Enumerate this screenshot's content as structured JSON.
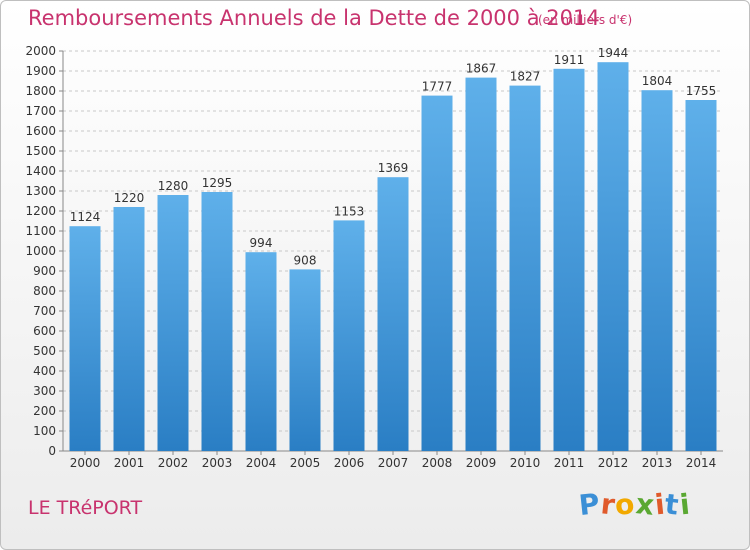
{
  "title": "Remboursements Annuels de la Dette de 2000 à 2014",
  "subtitle": "(en milliers d'€)",
  "location": "LE TRéPORT",
  "logo": {
    "letters": [
      "P",
      "r",
      "o",
      "x",
      "i",
      "t",
      "i"
    ],
    "colors": [
      "#3b8fd6",
      "#e05a2b",
      "#f2a900",
      "#5aa832",
      "#e05a2b",
      "#3b8fd6",
      "#5aa832"
    ]
  },
  "colors": {
    "bar_top": "#5fb0ea",
    "bar_bottom": "#2a7ec4",
    "accent": "#c8336e",
    "grid": "#c8c8c8"
  },
  "chart_data": {
    "type": "bar",
    "categories": [
      "2000",
      "2001",
      "2002",
      "2003",
      "2004",
      "2005",
      "2006",
      "2007",
      "2008",
      "2009",
      "2010",
      "2011",
      "2012",
      "2013",
      "2014"
    ],
    "values": [
      1124,
      1220,
      1280,
      1295,
      994,
      908,
      1153,
      1369,
      1777,
      1867,
      1827,
      1911,
      1944,
      1804,
      1755
    ],
    "ylim": [
      0,
      2000
    ],
    "ytick_step": 100,
    "grid": true
  }
}
